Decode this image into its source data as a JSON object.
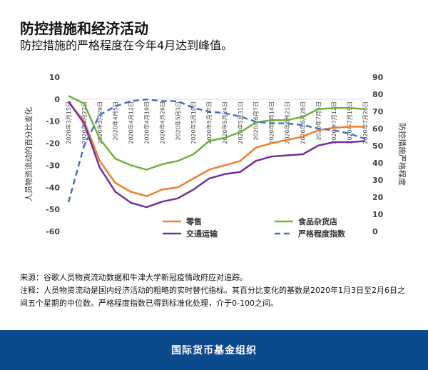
{
  "header": {
    "title": "防控措施和经济活动",
    "subtitle": "防控措施的严格程度在今年4月达到峰值。"
  },
  "notes": {
    "source": "来源：谷歌人员物资流动数据和牛津大学新冠疫情政府应对追踪。",
    "note": "注释：人员物资流动是国内经济活动的粗略的实时替代指标。其百分比变化的基数是2020年1月3日至2月6日之间五个星期的中位数。严格程度指数已得到标准化处理，介于0-100之间。"
  },
  "footer": {
    "org": "国际货币基金组织"
  },
  "chart_data": {
    "type": "line",
    "title": "",
    "ylabel": "人员物资流动的百分比变化",
    "y2label": "防控措施严格程度",
    "ylim": [
      -60,
      10
    ],
    "y2lim": [
      0,
      90
    ],
    "yticks": [
      "10",
      "0",
      "-10",
      "-20",
      "-30",
      "-40",
      "-50",
      "-60"
    ],
    "y2ticks": [
      "90",
      "80",
      "70",
      "60",
      "50",
      "40",
      "30",
      "20",
      "10",
      "0"
    ],
    "grid": false,
    "legend": "bottom",
    "categories": [
      "2020年3月15日",
      "2020年3月22日",
      "2020年3月29日",
      "2020年4月5日",
      "2020年4月12日",
      "2020年4月19日",
      "2020年4月26日",
      "2020年5月3日",
      "2020年5月10日",
      "2020年5月17日",
      "2020年5月24日",
      "2020年5月31日",
      "2020年6月7日",
      "2020年6月14日",
      "2020年6月21日",
      "2020年6月28日",
      "2020年7月5日",
      "2020年7月12日",
      "2020年7月19日",
      "2020年7月26日"
    ],
    "series": [
      {
        "name": "零售",
        "axis": "left",
        "color": "#f07f2a",
        "dash": false,
        "values": [
          -1.5,
          -10,
          -28,
          -38,
          -42,
          -44,
          -41,
          -40,
          -36,
          -32,
          -30,
          -28,
          -22,
          -20,
          -18.5,
          -17,
          -14,
          -13,
          -12.5,
          -12.5
        ]
      },
      {
        "name": "食品杂货店",
        "axis": "left",
        "color": "#6cb33f",
        "dash": false,
        "values": [
          1.5,
          -2,
          -18,
          -27,
          -30,
          -32,
          -29.5,
          -28,
          -25,
          -19,
          -17.5,
          -15,
          -10.5,
          -9.5,
          -9.5,
          -8,
          -4.5,
          -4,
          -4,
          -4.5
        ]
      },
      {
        "name": "交通运输",
        "axis": "left",
        "color": "#7030a0",
        "dash": false,
        "values": [
          -1,
          -11,
          -31,
          -42,
          -47,
          -49,
          -46.5,
          -45,
          -41,
          -36,
          -34,
          -33,
          -28,
          -26,
          -25.5,
          -25,
          -21,
          -19.5,
          -19.5,
          -19
        ]
      },
      {
        "name": "严格程度指数",
        "axis": "right",
        "color": "#4472c4",
        "dash": true,
        "values": [
          17,
          50,
          68,
          73,
          76,
          77,
          76,
          76,
          72,
          70,
          69,
          67,
          64,
          63,
          63,
          62,
          60,
          59,
          57,
          54
        ]
      }
    ]
  }
}
